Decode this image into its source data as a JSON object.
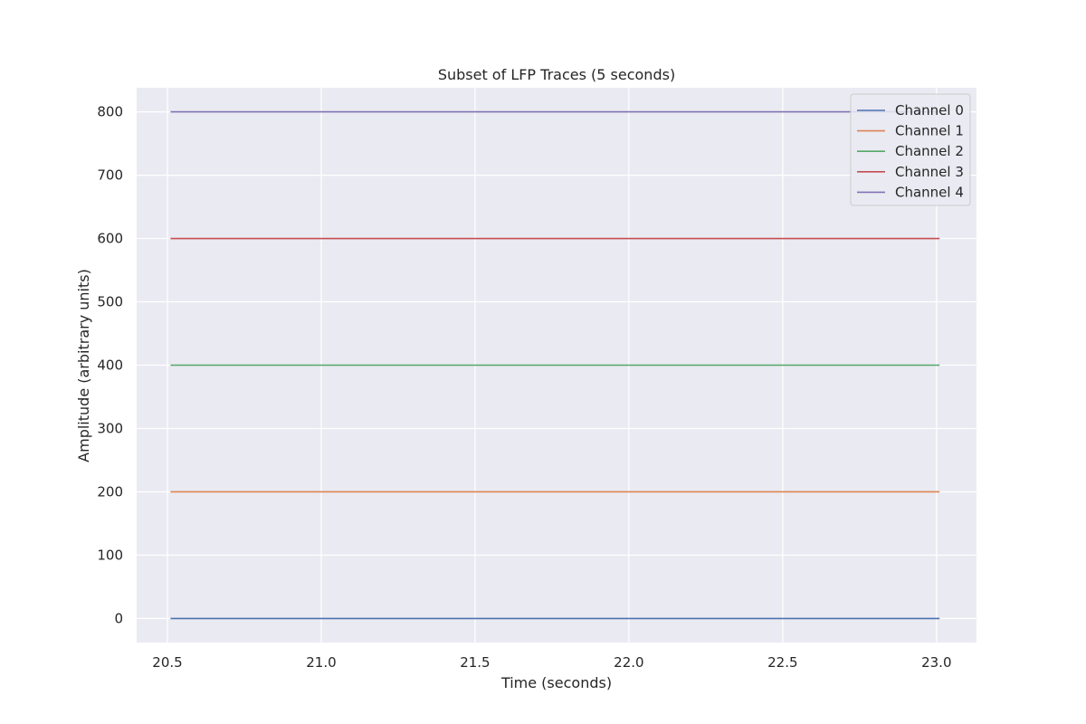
{
  "chart_data": {
    "type": "line",
    "title": "Subset of LFP Traces (5 seconds)",
    "xlabel": "Time (seconds)",
    "ylabel": "Amplitude (arbitrary units)",
    "xlim": [
      20.4,
      23.13
    ],
    "ylim": [
      -38,
      838
    ],
    "xticks": [
      20.5,
      21.0,
      21.5,
      22.0,
      22.5,
      23.0
    ],
    "xtick_labels": [
      "20.5",
      "21.0",
      "21.5",
      "22.0",
      "22.5",
      "23.0"
    ],
    "yticks": [
      0,
      100,
      200,
      300,
      400,
      500,
      600,
      700,
      800
    ],
    "ytick_labels": [
      "0",
      "100",
      "200",
      "300",
      "400",
      "500",
      "600",
      "700",
      "800"
    ],
    "grid": true,
    "legend_position": "top-right",
    "series": [
      {
        "name": "Channel 0",
        "color": "#4c72b0",
        "x": [
          20.51,
          23.01
        ],
        "y": [
          0,
          0
        ]
      },
      {
        "name": "Channel 1",
        "color": "#dd8452",
        "x": [
          20.51,
          23.01
        ],
        "y": [
          200,
          200
        ]
      },
      {
        "name": "Channel 2",
        "color": "#55a868",
        "x": [
          20.51,
          23.01
        ],
        "y": [
          400,
          400
        ]
      },
      {
        "name": "Channel 3",
        "color": "#c44e52",
        "x": [
          20.51,
          23.01
        ],
        "y": [
          600,
          600
        ]
      },
      {
        "name": "Channel 4",
        "color": "#8172b3",
        "x": [
          20.51,
          23.01
        ],
        "y": [
          800,
          800
        ]
      }
    ]
  }
}
